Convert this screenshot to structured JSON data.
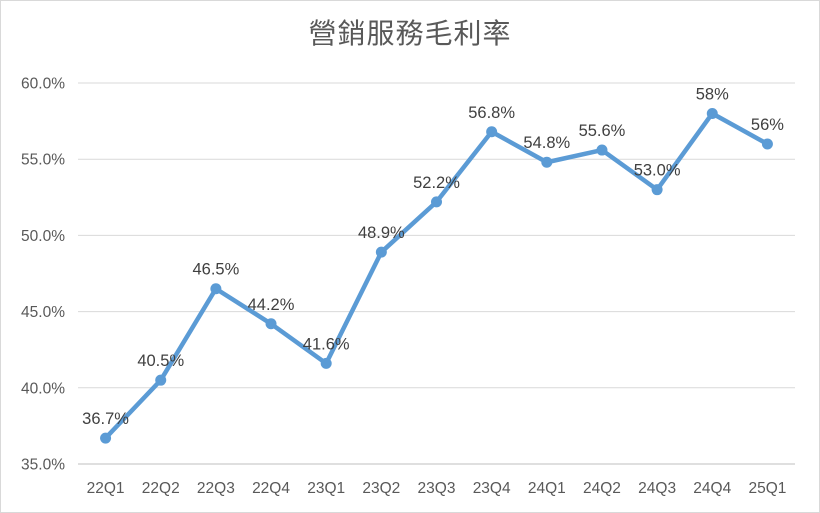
{
  "chart_data": {
    "type": "line",
    "title": "營銷服務毛利率",
    "categories": [
      "22Q1",
      "22Q2",
      "22Q3",
      "22Q4",
      "23Q1",
      "23Q2",
      "23Q3",
      "23Q4",
      "24Q1",
      "24Q2",
      "24Q3",
      "24Q4",
      "25Q1"
    ],
    "values": [
      36.7,
      40.5,
      46.5,
      44.2,
      41.6,
      48.9,
      52.2,
      56.8,
      54.8,
      55.6,
      53.0,
      58,
      56
    ],
    "point_labels": [
      "36.7%",
      "40.5%",
      "46.5%",
      "44.2%",
      "41.6%",
      "48.9%",
      "52.2%",
      "56.8%",
      "54.8%",
      "55.6%",
      "53.0%",
      "58%",
      "56%"
    ],
    "xlabel": "",
    "ylabel": "",
    "ylim": [
      35,
      60
    ],
    "y_tick_step": 5,
    "y_tick_labels": [
      "60.0%",
      "55.0%",
      "50.0%",
      "45.0%",
      "40.0%",
      "35.0%"
    ],
    "grid": true,
    "legend": "none",
    "marker": "circle",
    "colors": {
      "line": "#5B9BD5",
      "marker": "#5B9BD5",
      "point_label": "#404040",
      "axis_label": "#595959",
      "title": "#595959",
      "gridline": "#D9D9D9",
      "axis_line": "#BFBFBF",
      "chart_border": "#D9D9D9",
      "background": "#FFFFFF"
    }
  }
}
